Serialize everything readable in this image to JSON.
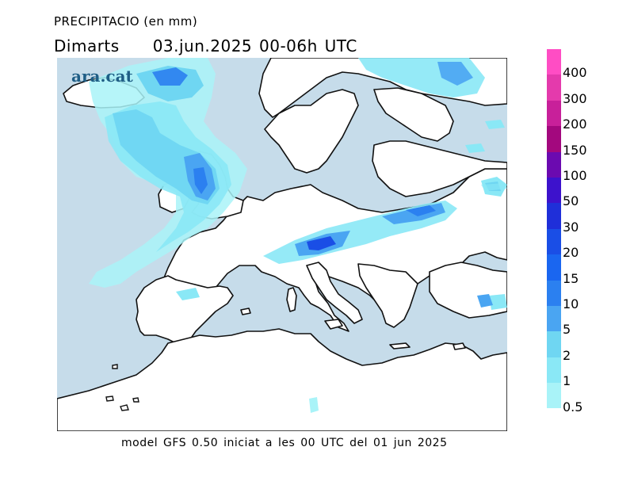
{
  "header": {
    "title": "PRECIPITACIO (en mm)",
    "day": "Dimarts",
    "period": "03.jun.2025 00-06h UTC"
  },
  "map": {
    "logo": "ara.cat",
    "sea_color": "#c6dcea",
    "land_color": "#ffffff"
  },
  "footer": {
    "model_text": "model GFS 0.50 iniciat a les 00 UTC del 01 jun 2025"
  },
  "legend": {
    "levels": [
      {
        "label": "400",
        "color": "#ff4dc4"
      },
      {
        "label": "300",
        "color": "#e43aac"
      },
      {
        "label": "200",
        "color": "#c8209a"
      },
      {
        "label": "150",
        "color": "#a3087e"
      },
      {
        "label": "100",
        "color": "#6b0ab0"
      },
      {
        "label": "50",
        "color": "#3d12cc"
      },
      {
        "label": "30",
        "color": "#1f2fd9"
      },
      {
        "label": "20",
        "color": "#1a4ee6"
      },
      {
        "label": "15",
        "color": "#1a66f0"
      },
      {
        "label": "10",
        "color": "#2b80f0"
      },
      {
        "label": "5",
        "color": "#4aa5f2"
      },
      {
        "label": "2",
        "color": "#6fd6f2"
      },
      {
        "label": "1",
        "color": "#8ae8f6"
      },
      {
        "label": "0.5",
        "color": "#a9f3f8"
      }
    ]
  }
}
